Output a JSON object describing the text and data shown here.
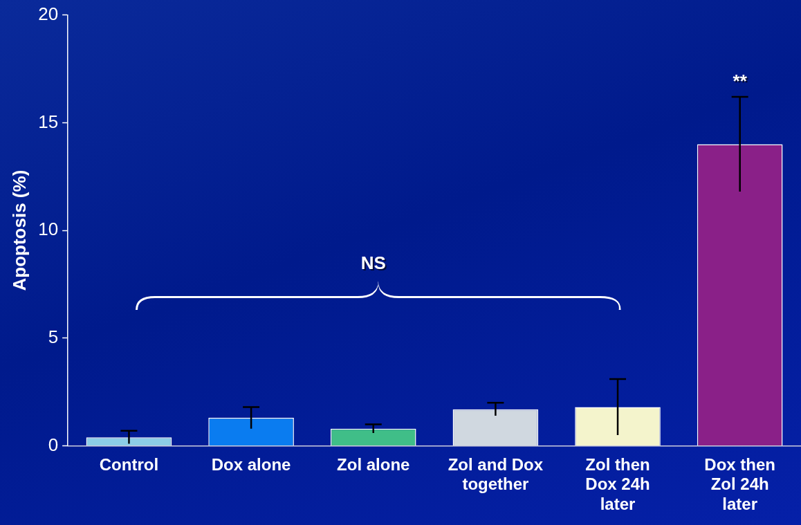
{
  "chart_data": {
    "type": "bar",
    "ylabel": "Apoptosis (%)",
    "categories": [
      "Control",
      "Dox alone",
      "Zol alone",
      "Zol and Dox together",
      "Zol then Dox 24h later",
      "Dox then Zol 24h later"
    ],
    "values": [
      0.4,
      1.3,
      0.8,
      1.7,
      1.8,
      14.0
    ],
    "errors": [
      0.3,
      0.5,
      0.2,
      0.3,
      1.3,
      2.2
    ],
    "colors": [
      "#8ccde6",
      "#0a7cf0",
      "#40be88",
      "#d0d8e0",
      "#f4f4cc",
      "#8a2088"
    ],
    "ylim": [
      0,
      20
    ],
    "yticks": [
      0,
      5,
      10,
      15,
      20
    ],
    "grid": false,
    "legend": false,
    "annotations": [
      "NS",
      "**"
    ]
  }
}
